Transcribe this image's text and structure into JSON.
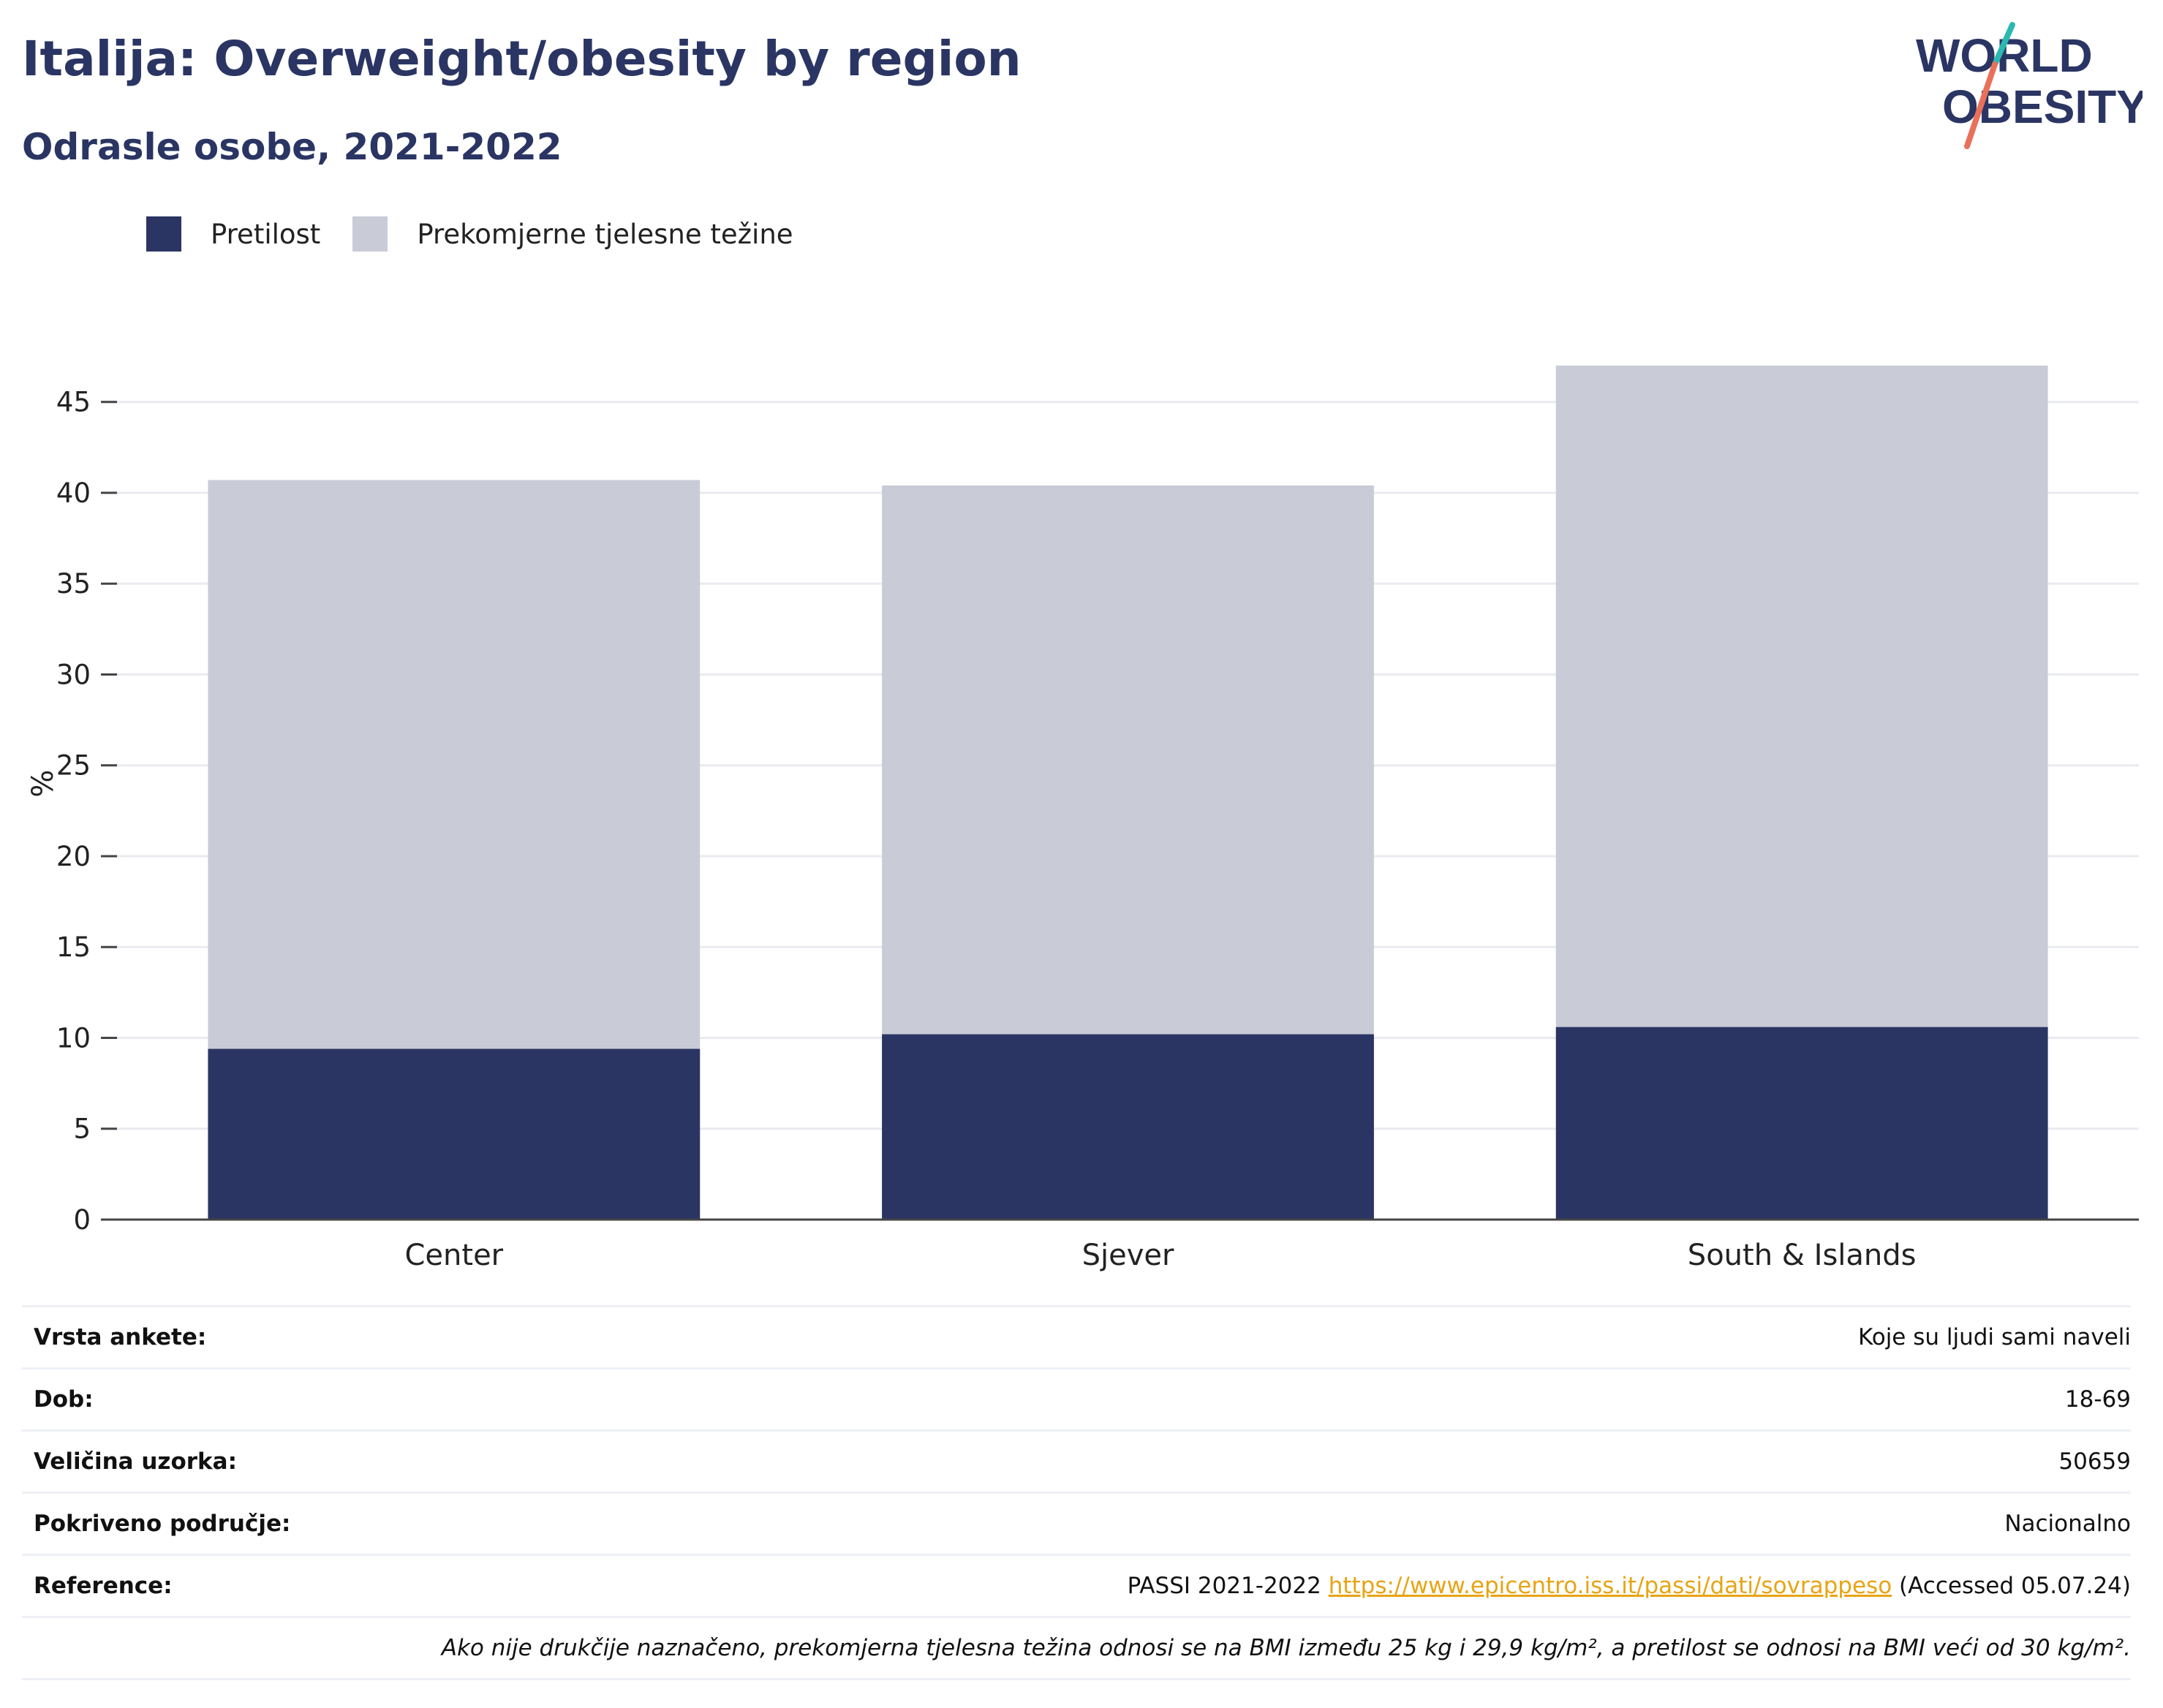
{
  "header": {
    "title": "Italija: Overweight/obesity by region",
    "subtitle": "Odrasle osobe, 2021-2022",
    "logo_line1": "WORLD",
    "logo_line2": "OBESITY"
  },
  "colors": {
    "obesity": "#2a3563",
    "overweight": "#c9ccd7",
    "title": "#2a3563",
    "link": "#e8a413",
    "logo_slash_teal": "#2bb8b0",
    "logo_slash_coral": "#e9705a"
  },
  "chart_data": {
    "type": "bar",
    "stacked": true,
    "categories": [
      "Center",
      "Sjever",
      "South & Islands"
    ],
    "series": [
      {
        "name": "Pretilost",
        "values": [
          9.4,
          10.2,
          10.6
        ]
      },
      {
        "name": "Prekomjerne tjelesne težine",
        "values": [
          31.3,
          30.2,
          36.4
        ]
      }
    ],
    "ylabel": "%",
    "xlabel": "",
    "ylim": [
      0,
      47
    ],
    "yticks": [
      0,
      5,
      10,
      15,
      20,
      25,
      30,
      35,
      40,
      45
    ],
    "grid": true,
    "legend_position": "top-left"
  },
  "meta": {
    "rows": [
      {
        "key": "Vrsta ankete:",
        "value": "Koje su ljudi sami naveli"
      },
      {
        "key": "Dob:",
        "value": "18-69"
      },
      {
        "key": "Veličina uzorka:",
        "value": "50659"
      },
      {
        "key": "Pokriveno područje:",
        "value": "Nacionalno"
      }
    ],
    "reference_key": "Reference:",
    "reference_prefix": "PASSI 2021-2022",
    "reference_link": "https://www.epicentro.iss.it/passi/dati/sovrappeso",
    "reference_suffix": "(Accessed 05.07.24)",
    "note": "Ako nije drukčije naznačeno, prekomjerna tjelesna težina odnosi se na BMI između 25 kg i 29,9 kg/m², a pretilost se odnosi na BMI veći od 30 kg/m²."
  }
}
